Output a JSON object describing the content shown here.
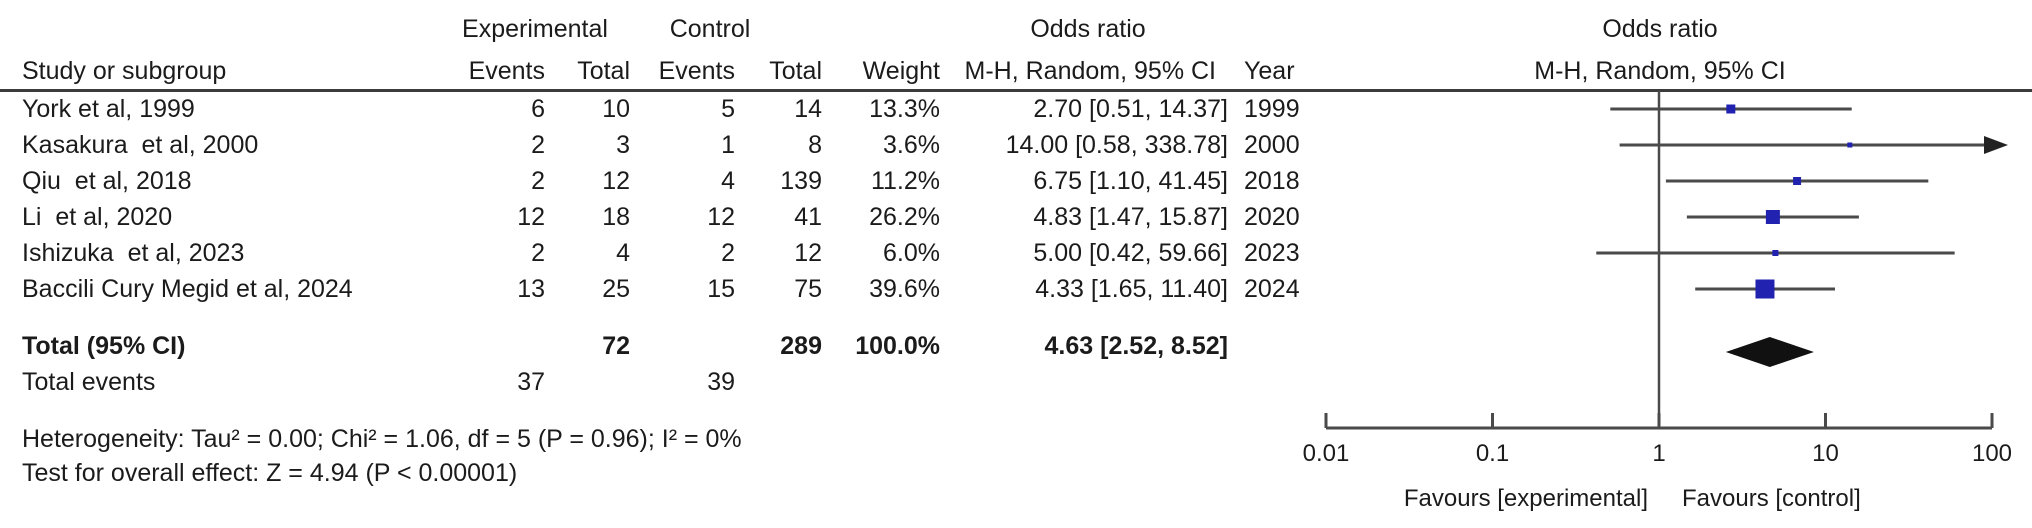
{
  "table": {
    "header": {
      "group_experimental": "Experimental",
      "group_control": "Control",
      "group_odds_ratio": "Odds ratio",
      "study": "Study or subgroup",
      "events": "Events",
      "total": "Total",
      "weight": "Weight",
      "mh_random": "M-H, Random, 95% CI",
      "year": "Year"
    },
    "rows": [
      {
        "study": "York et al, 1999",
        "exp_events": "6",
        "exp_total": "10",
        "ctrl_events": "5",
        "ctrl_total": "14",
        "weight": "13.3%",
        "or_label": "2.70 [0.51, 14.37]",
        "year": "1999"
      },
      {
        "study": "Kasakura  et al, 2000",
        "exp_events": "2",
        "exp_total": "3",
        "ctrl_events": "1",
        "ctrl_total": "8",
        "weight": "3.6%",
        "or_label": "14.00 [0.58, 338.78]",
        "year": "2000"
      },
      {
        "study": "Qiu  et al, 2018",
        "exp_events": "2",
        "exp_total": "12",
        "ctrl_events": "4",
        "ctrl_total": "139",
        "weight": "11.2%",
        "or_label": "6.75 [1.10, 41.45]",
        "year": "2018"
      },
      {
        "study": "Li  et al, 2020",
        "exp_events": "12",
        "exp_total": "18",
        "ctrl_events": "12",
        "ctrl_total": "41",
        "weight": "26.2%",
        "or_label": "4.83 [1.47, 15.87]",
        "year": "2020"
      },
      {
        "study": "Ishizuka  et al, 2023",
        "exp_events": "2",
        "exp_total": "4",
        "ctrl_events": "2",
        "ctrl_total": "12",
        "weight": "6.0%",
        "or_label": "5.00 [0.42, 59.66]",
        "year": "2023"
      },
      {
        "study": "Baccili Cury Megid et al, 2024",
        "exp_events": "13",
        "exp_total": "25",
        "ctrl_events": "15",
        "ctrl_total": "75",
        "weight": "39.6%",
        "or_label": "4.33 [1.65, 11.40]",
        "year": "2024"
      }
    ],
    "total_row": {
      "label": "Total (95% CI)",
      "exp_total": "72",
      "ctrl_total": "289",
      "weight": "100.0%",
      "or_label": "4.63 [2.52, 8.52]"
    },
    "total_events_row": {
      "label": "Total events",
      "exp_events": "37",
      "ctrl_events": "39"
    },
    "heterogeneity": "Heterogeneity: Tau² = 0.00; Chi² = 1.06, df = 5 (P = 0.96); I² = 0%",
    "overall_effect": "Test for overall effect: Z = 4.94 (P < 0.00001)"
  },
  "plot": {
    "title": "Odds ratio",
    "subtitle": "M-H, Random, 95% CI",
    "favours_left": "Favours [experimental]",
    "favours_right": "Favours [control]"
  },
  "chart_data": {
    "type": "forest",
    "effect_measure": "Odds ratio, M-H, Random, 95% CI",
    "x_scale": "log10",
    "xlim": [
      0.01,
      100
    ],
    "null_line": 1,
    "x_ticks": [
      0.01,
      0.1,
      1,
      10,
      100
    ],
    "x_tick_labels": [
      "0.01",
      "0.1",
      "1",
      "10",
      "100"
    ],
    "studies": [
      {
        "name": "York et al, 1999",
        "exp_events": 6,
        "exp_total": 10,
        "ctrl_events": 5,
        "ctrl_total": 14,
        "weight_pct": 13.3,
        "or": 2.7,
        "ci_low": 0.51,
        "ci_high": 14.37,
        "year": 1999
      },
      {
        "name": "Kasakura et al, 2000",
        "exp_events": 2,
        "exp_total": 3,
        "ctrl_events": 1,
        "ctrl_total": 8,
        "weight_pct": 3.6,
        "or": 14.0,
        "ci_low": 0.58,
        "ci_high": 338.78,
        "year": 2000
      },
      {
        "name": "Qiu et al, 2018",
        "exp_events": 2,
        "exp_total": 12,
        "ctrl_events": 4,
        "ctrl_total": 139,
        "weight_pct": 11.2,
        "or": 6.75,
        "ci_low": 1.1,
        "ci_high": 41.45,
        "year": 2018
      },
      {
        "name": "Li et al, 2020",
        "exp_events": 12,
        "exp_total": 18,
        "ctrl_events": 12,
        "ctrl_total": 41,
        "weight_pct": 26.2,
        "or": 4.83,
        "ci_low": 1.47,
        "ci_high": 15.87,
        "year": 2020
      },
      {
        "name": "Ishizuka et al, 2023",
        "exp_events": 2,
        "exp_total": 4,
        "ctrl_events": 2,
        "ctrl_total": 12,
        "weight_pct": 6.0,
        "or": 5.0,
        "ci_low": 0.42,
        "ci_high": 59.66,
        "year": 2023
      },
      {
        "name": "Baccili Cury Megid et al, 2024",
        "exp_events": 13,
        "exp_total": 25,
        "ctrl_events": 15,
        "ctrl_total": 75,
        "weight_pct": 39.6,
        "or": 4.33,
        "ci_low": 1.65,
        "ci_high": 11.4,
        "year": 2024
      }
    ],
    "total": {
      "label": "Total (95% CI)",
      "exp_events": 37,
      "exp_total": 72,
      "ctrl_events": 39,
      "ctrl_total": 289,
      "weight_pct": 100.0,
      "or": 4.63,
      "ci_low": 2.52,
      "ci_high": 8.52
    },
    "heterogeneity": {
      "tau2": 0.0,
      "chi2": 1.06,
      "df": 5,
      "p": 0.96,
      "i2_pct": 0
    },
    "overall_effect": {
      "z": 4.94,
      "p": "< 0.00001"
    }
  },
  "colors": {
    "text": "#1b1b1b",
    "line": "#4a4a4a",
    "marker": "#2222b0",
    "diamond": "#111111",
    "separator": "#3c3c3c"
  }
}
